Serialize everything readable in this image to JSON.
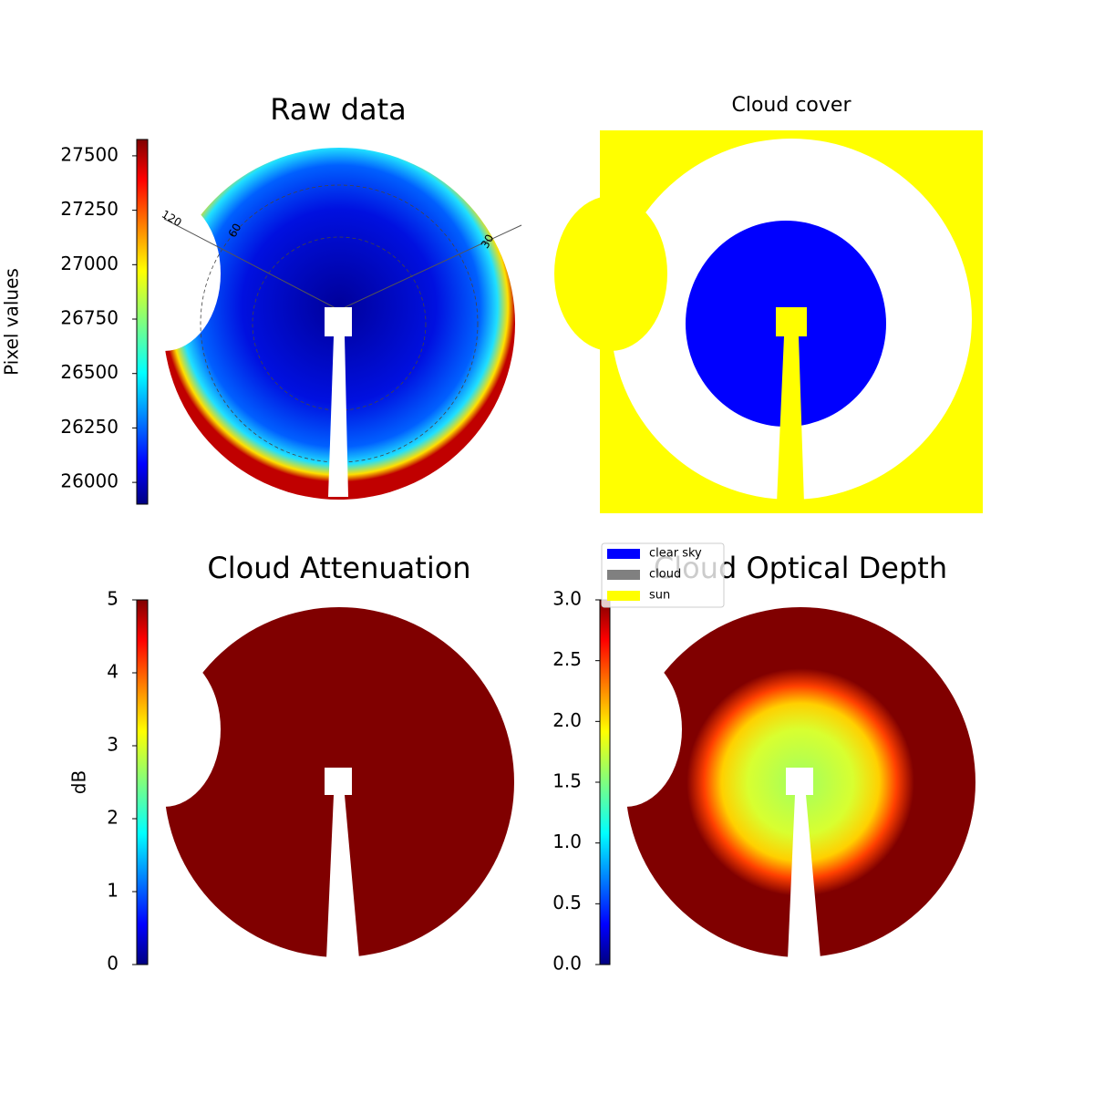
{
  "chart_data": [
    {
      "type": "image",
      "title": "Raw data",
      "colormap": "jet",
      "colorbar": {
        "label": "Pixel values",
        "lim": [
          25900,
          27575
        ],
        "ticks": [
          26000,
          26250,
          26500,
          26750,
          27000,
          27250,
          27500
        ]
      },
      "annotations": [
        "120",
        "60",
        "30"
      ]
    },
    {
      "type": "image",
      "title": "Cloud cover",
      "legend": [
        {
          "name": "clear sky",
          "color": "#0000ff"
        },
        {
          "name": "cloud",
          "color": "#808080"
        },
        {
          "name": "sun",
          "color": "#ffff00"
        }
      ]
    },
    {
      "type": "image",
      "title": "Cloud Attenuation",
      "colormap": "jet",
      "colorbar": {
        "label": "dB",
        "lim": [
          0,
          5
        ],
        "ticks": [
          0,
          1,
          2,
          3,
          4,
          5
        ]
      }
    },
    {
      "type": "image",
      "title": "Cloud Optical Depth",
      "colormap": "jet",
      "colorbar": {
        "label": "",
        "lim": [
          0,
          3
        ],
        "ticks": [
          {
            "value": 0,
            "label": "0.0"
          },
          0.5,
          {
            "value": 1,
            "label": "1.0"
          },
          1.5,
          {
            "value": 2,
            "label": "2.0"
          },
          2.5,
          {
            "value": 3,
            "label": "3.0"
          }
        ]
      }
    }
  ]
}
